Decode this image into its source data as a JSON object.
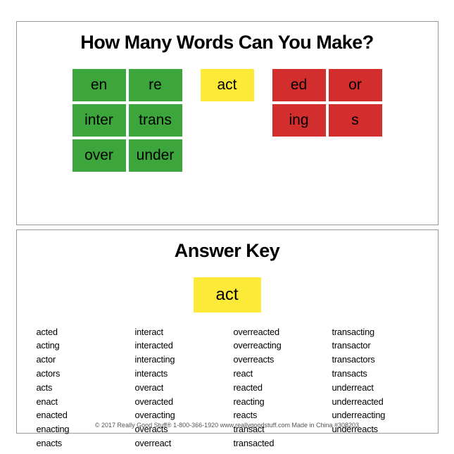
{
  "colors": {
    "green": "#3ca63c",
    "yellow": "#fce938",
    "red": "#d22e2e",
    "border": "#999999",
    "bg": "#ffffff",
    "text": "#000000"
  },
  "top": {
    "title": "How Many Words Can You Make?",
    "prefixes": [
      [
        "en",
        "re"
      ],
      [
        "inter",
        "trans"
      ],
      [
        "over",
        "under"
      ]
    ],
    "root": "act",
    "suffixes": [
      [
        "ed",
        "or"
      ],
      [
        "ing",
        "s"
      ]
    ],
    "tile": {
      "w": 76,
      "h": 46,
      "fontsize": 21,
      "gap": 4
    }
  },
  "bottom": {
    "title": "Answer Key",
    "root": "act",
    "columns": [
      [
        "acted",
        "acting",
        "actor",
        "actors",
        "acts",
        "enact",
        "enacted",
        "enacting",
        "enacts"
      ],
      [
        "interact",
        "interacted",
        "interacting",
        "interacts",
        "overact",
        "overacted",
        "overacting",
        "overacts",
        "overreact"
      ],
      [
        "overreacted",
        "overreacting",
        "overreacts",
        "react",
        "reacted",
        "reacting",
        "reacts",
        "transact",
        "transacted"
      ],
      [
        "transacting",
        "transactor",
        "transactors",
        "transacts",
        "underreact",
        "underreacted",
        "underreacting",
        "underreacts"
      ]
    ],
    "fontsize": 12.8
  },
  "footer": "© 2017 Really Good Stuff®   1-800-366-1920   www.reallygoodstuff.com   Made in China   #308203"
}
